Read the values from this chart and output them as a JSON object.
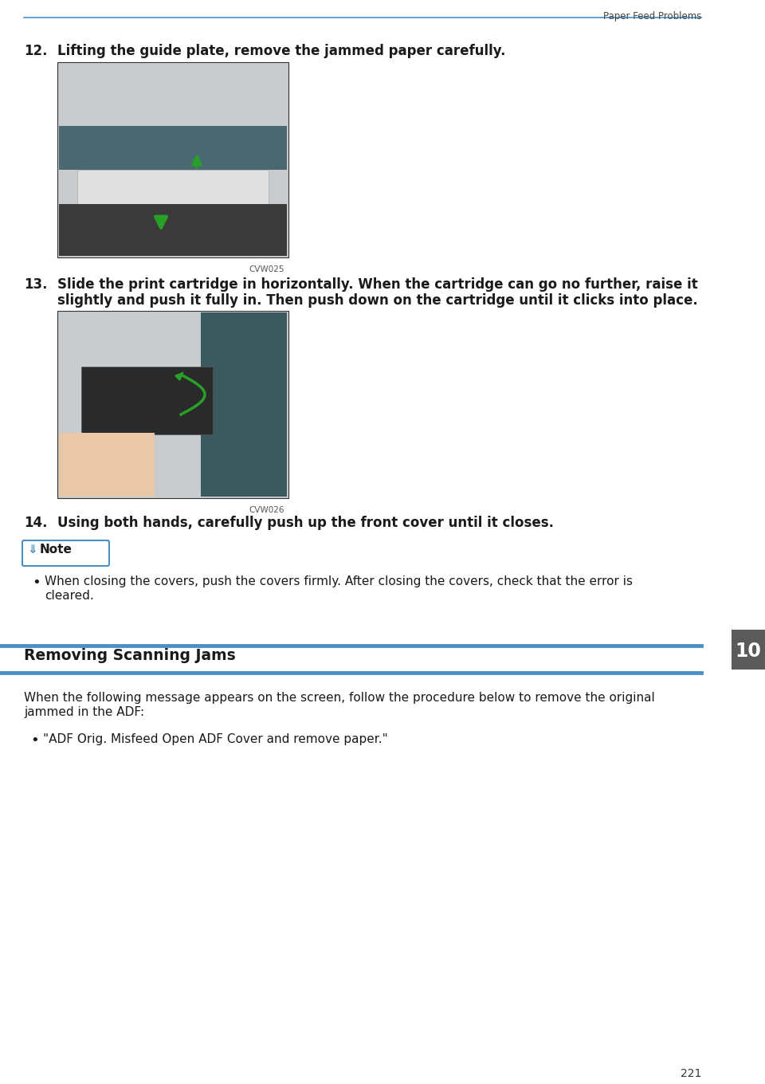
{
  "bg_color": "#ffffff",
  "header_text": "Paper Feed Problems",
  "header_line_color": "#4a90c4",
  "page_number": "221",
  "chapter_tab_color": "#5a5a5a",
  "chapter_tab_text": "10",
  "section_line_color": "#4a90c4",
  "step12_label": "12.",
  "step12_text": "Lifting the guide plate, remove the jammed paper carefully.",
  "step12_image_caption": "CVW025",
  "step13_label": "13.",
  "step13_text_line1": "Slide the print cartridge in horizontally. When the cartridge can go no further, raise it",
  "step13_text_line2": "slightly and push it fully in. Then push down on the cartridge until it clicks into place.",
  "step13_image_caption": "CVW026",
  "step14_label": "14.",
  "step14_text": "Using both hands, carefully push up the front cover until it closes.",
  "note_label": "Note",
  "note_bullet": "When closing the covers, push the covers firmly. After closing the covers, check that the error is cleared.",
  "note_bullet_line2": "cleared.",
  "section_title": "Removing Scanning Jams",
  "body_text_line1": "When the following message appears on the screen, follow the procedure below to remove the original",
  "body_text_line2": "jammed in the ADF:",
  "bullet_text": "\"ADF Orig. Misfeed Open ADF Cover and remove paper.\""
}
